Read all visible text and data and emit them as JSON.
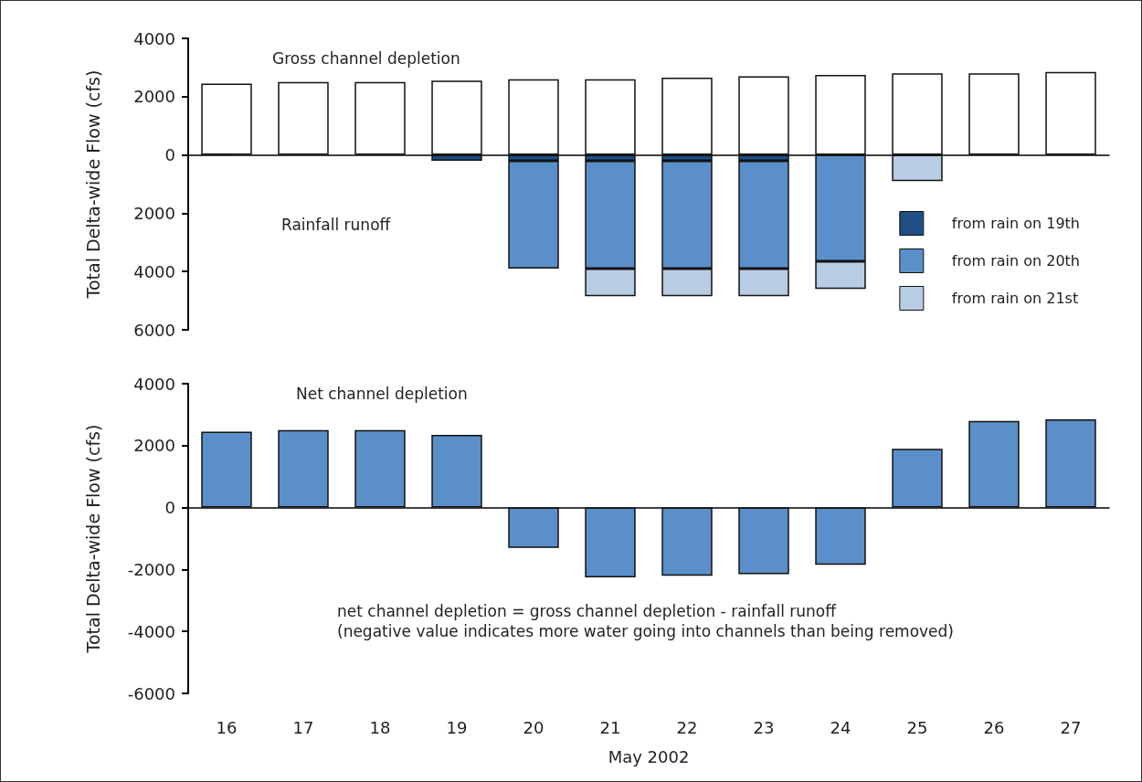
{
  "chart_data": [
    {
      "type": "bar",
      "stacked": true,
      "ylabel": "Total Delta-wide Flow (cfs)",
      "categories": [
        "16",
        "17",
        "18",
        "19",
        "20",
        "21",
        "22",
        "23",
        "24",
        "25",
        "26",
        "27"
      ],
      "series": [
        {
          "color": "#ffffff",
          "values": [
            2450,
            2500,
            2500,
            2550,
            2600,
            2600,
            2650,
            2700,
            2750,
            2800,
            2800,
            2850
          ]
        },
        {
          "name": "from rain on 19th",
          "color": "#1f4e84",
          "values": [
            null,
            null,
            null,
            -200,
            -200,
            -200,
            -200,
            -200,
            null,
            null,
            null,
            null
          ]
        },
        {
          "name": "from rain on 20th",
          "color": "#5b8fc9",
          "values": [
            null,
            null,
            null,
            null,
            -3700,
            -3700,
            -3700,
            -3700,
            -3650,
            null,
            null,
            null
          ]
        },
        {
          "name": "from rain on 21st",
          "color": "#b8cce4",
          "values": [
            null,
            null,
            null,
            null,
            null,
            -950,
            -950,
            -950,
            -950,
            -900,
            null,
            null
          ]
        }
      ],
      "ylim": [
        -6000,
        4000
      ],
      "yticks": [
        4000,
        2000,
        0,
        {
          "value": -2000,
          "label": "2000"
        },
        {
          "value": -4000,
          "label": "4000"
        },
        {
          "value": -6000,
          "label": "6000"
        }
      ],
      "annotations": [
        "Gross channel depletion",
        "Rainfall runoff"
      ],
      "legend": "right",
      "tick_labels": "y"
    },
    {
      "type": "bar",
      "ylabel": "Total Delta-wide Flow (cfs)",
      "xlabel": "May 2002",
      "categories": [
        "16",
        "17",
        "18",
        "19",
        "20",
        "21",
        "22",
        "23",
        "24",
        "25",
        "26",
        "27"
      ],
      "series": [
        {
          "color": "#5b8fc9",
          "values": [
            2450,
            2500,
            2500,
            2350,
            -1300,
            -2250,
            -2200,
            -2150,
            -1850,
            1900,
            2800,
            2850
          ]
        }
      ],
      "ylim": [
        -6000,
        4000
      ],
      "yticks": [
        4000,
        2000,
        0,
        -2000,
        -4000,
        -6000
      ],
      "annotations": [
        "Net channel depletion",
        "net channel depletion = gross channel depletion - rainfall runoff\n(negative value indicates more water going into channels than being removed)"
      ],
      "legend": false
    }
  ]
}
